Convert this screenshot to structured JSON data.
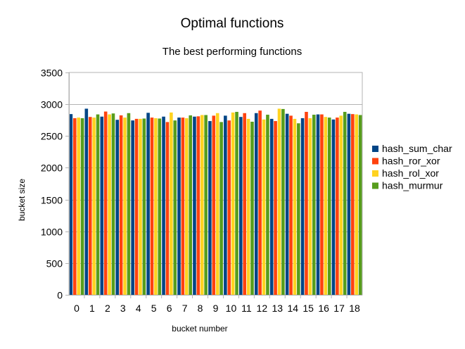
{
  "chart_data": {
    "type": "bar",
    "title": "Optimal functions",
    "subtitle": "The best performing functions",
    "xlabel": "bucket number",
    "ylabel": "bucket size",
    "ylim": [
      0,
      3500
    ],
    "yticks": [
      "0",
      "500",
      "1000",
      "1500",
      "2000",
      "2500",
      "3000",
      "3500"
    ],
    "grid": true,
    "legend_position": "right",
    "categories": [
      "0",
      "1",
      "2",
      "3",
      "4",
      "5",
      "6",
      "7",
      "8",
      "9",
      "10",
      "11",
      "12",
      "13",
      "14",
      "15",
      "16",
      "17",
      "18"
    ],
    "series": [
      {
        "name": "hash_sum_char",
        "color": "#004586",
        "values": [
          2845,
          2930,
          2805,
          2755,
          2745,
          2865,
          2805,
          2790,
          2805,
          2735,
          2820,
          2800,
          2860,
          2770,
          2850,
          2780,
          2840,
          2760,
          2850
        ]
      },
      {
        "name": "hash_ror_xor",
        "color": "#ff420e",
        "values": [
          2780,
          2800,
          2885,
          2825,
          2770,
          2790,
          2720,
          2790,
          2810,
          2820,
          2745,
          2860,
          2900,
          2735,
          2820,
          2880,
          2840,
          2790,
          2845
        ]
      },
      {
        "name": "hash_rol_xor",
        "color": "#ffd320",
        "values": [
          2790,
          2790,
          2840,
          2790,
          2770,
          2780,
          2870,
          2780,
          2830,
          2860,
          2870,
          2770,
          2760,
          2930,
          2770,
          2780,
          2800,
          2820,
          2840
        ]
      },
      {
        "name": "hash_murmur",
        "color": "#579d1c",
        "values": [
          2780,
          2840,
          2855,
          2860,
          2775,
          2775,
          2745,
          2825,
          2830,
          2720,
          2880,
          2725,
          2835,
          2925,
          2700,
          2835,
          2790,
          2880,
          2830
        ]
      }
    ]
  }
}
